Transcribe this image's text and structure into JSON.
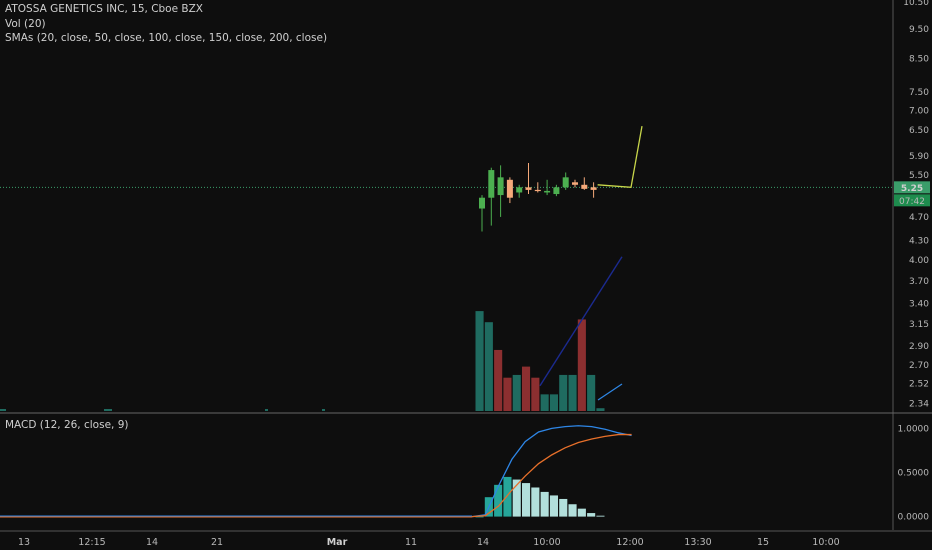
{
  "header": {
    "title": "ATOSSA GENETICS INC, 15, Cboe BZX",
    "volume_label": "Vol (20)",
    "sma_label": "SMAs (20, close, 50, close, 100, close, 150, close, 200, close)"
  },
  "macd_panel": {
    "label": "MACD (12, 26, close, 9)"
  },
  "price_badge": {
    "price": "5.25",
    "countdown": "07:42",
    "color": "#1e8c4e"
  },
  "colors": {
    "background": "#0e0e0e",
    "up_candle": "#4caf50",
    "down_candle": "#f5a97a",
    "volume_up": "#1f6b60",
    "volume_down": "#8c2f30",
    "sma_line": "#c8d64a",
    "sma_long": "#1b2a8f",
    "macd_line": "#2e86e6",
    "signal_line": "#e8702a",
    "histogram_strong": "#26a69a",
    "histogram_weak": "#b2dfdb",
    "last_price_line": "#3a9d6a"
  },
  "chart_data": [
    {
      "type": "candlestick",
      "title": "ATOSSA GENETICS INC, 15, Cboe BZX",
      "y_scale": "log",
      "ylim": [
        2.3,
        10.5
      ],
      "y_ticks": [
        "10.50",
        "9.50",
        "8.50",
        "7.50",
        "7.00",
        "6.50",
        "5.90",
        "5.50",
        "4.70",
        "4.30",
        "4.00",
        "3.70",
        "3.40",
        "3.15",
        "2.90",
        "2.70",
        "2.52",
        "2.34"
      ],
      "x_ticks": [
        "13",
        "12:15",
        "14",
        "21",
        "Mar",
        "11",
        "14",
        "10:00",
        "12:00",
        "13:30",
        "15",
        "10:00"
      ],
      "last_price": 5.25,
      "candles": [
        {
          "o": 4.85,
          "h": 5.1,
          "l": 4.45,
          "c": 5.05
        },
        {
          "o": 5.05,
          "h": 5.65,
          "l": 4.55,
          "c": 5.6
        },
        {
          "o": 5.1,
          "h": 5.7,
          "l": 4.7,
          "c": 5.45
        },
        {
          "o": 5.4,
          "h": 5.45,
          "l": 4.95,
          "c": 5.05
        },
        {
          "o": 5.15,
          "h": 5.3,
          "l": 5.05,
          "c": 5.25
        },
        {
          "o": 5.25,
          "h": 5.75,
          "l": 5.12,
          "c": 5.2
        },
        {
          "o": 5.2,
          "h": 5.35,
          "l": 5.15,
          "c": 5.18
        },
        {
          "o": 5.15,
          "h": 5.4,
          "l": 5.1,
          "c": 5.18
        },
        {
          "o": 5.12,
          "h": 5.3,
          "l": 5.08,
          "c": 5.25
        },
        {
          "o": 5.25,
          "h": 5.55,
          "l": 5.2,
          "c": 5.45
        },
        {
          "o": 5.35,
          "h": 5.4,
          "l": 5.25,
          "c": 5.3
        },
        {
          "o": 5.3,
          "h": 5.45,
          "l": 5.2,
          "c": 5.22
        },
        {
          "o": 5.25,
          "h": 5.35,
          "l": 5.05,
          "c": 5.2
        }
      ],
      "sma_overlay": [
        5.3,
        5.25,
        6.6
      ],
      "sma_long": [
        2.5,
        4.05
      ]
    },
    {
      "type": "bar",
      "title": "Vol (20)",
      "values": [
        3.6,
        3.2,
        2.2,
        1.2,
        1.3,
        1.6,
        1.2,
        0.6,
        0.6,
        1.3,
        1.3,
        3.3,
        1.3,
        0.1
      ],
      "directions": [
        "up",
        "up",
        "down",
        "down",
        "up",
        "down",
        "down",
        "up",
        "up",
        "up",
        "up",
        "down",
        "up",
        "up"
      ],
      "ylim": [
        0,
        4
      ]
    },
    {
      "type": "line",
      "title": "MACD (12, 26, close, 9)",
      "ylim": [
        -0.05,
        1.05
      ],
      "y_ticks": [
        "1.0000",
        "0.5000",
        "0.0000"
      ],
      "macd": [
        0.0,
        0.02,
        0.35,
        0.65,
        0.85,
        0.96,
        1.0,
        1.02,
        1.03,
        1.02,
        0.99,
        0.95,
        0.92
      ],
      "signal": [
        0.0,
        0.01,
        0.12,
        0.3,
        0.46,
        0.6,
        0.7,
        0.78,
        0.84,
        0.88,
        0.91,
        0.93,
        0.93
      ],
      "histogram": [
        0.0,
        0.22,
        0.36,
        0.45,
        0.42,
        0.38,
        0.33,
        0.28,
        0.24,
        0.2,
        0.14,
        0.09,
        0.04,
        0.01
      ],
      "histogram_strength": [
        "strong",
        "strong",
        "strong",
        "strong",
        "weak",
        "weak",
        "weak",
        "weak",
        "weak",
        "weak",
        "weak",
        "weak",
        "weak",
        "weak"
      ]
    }
  ]
}
